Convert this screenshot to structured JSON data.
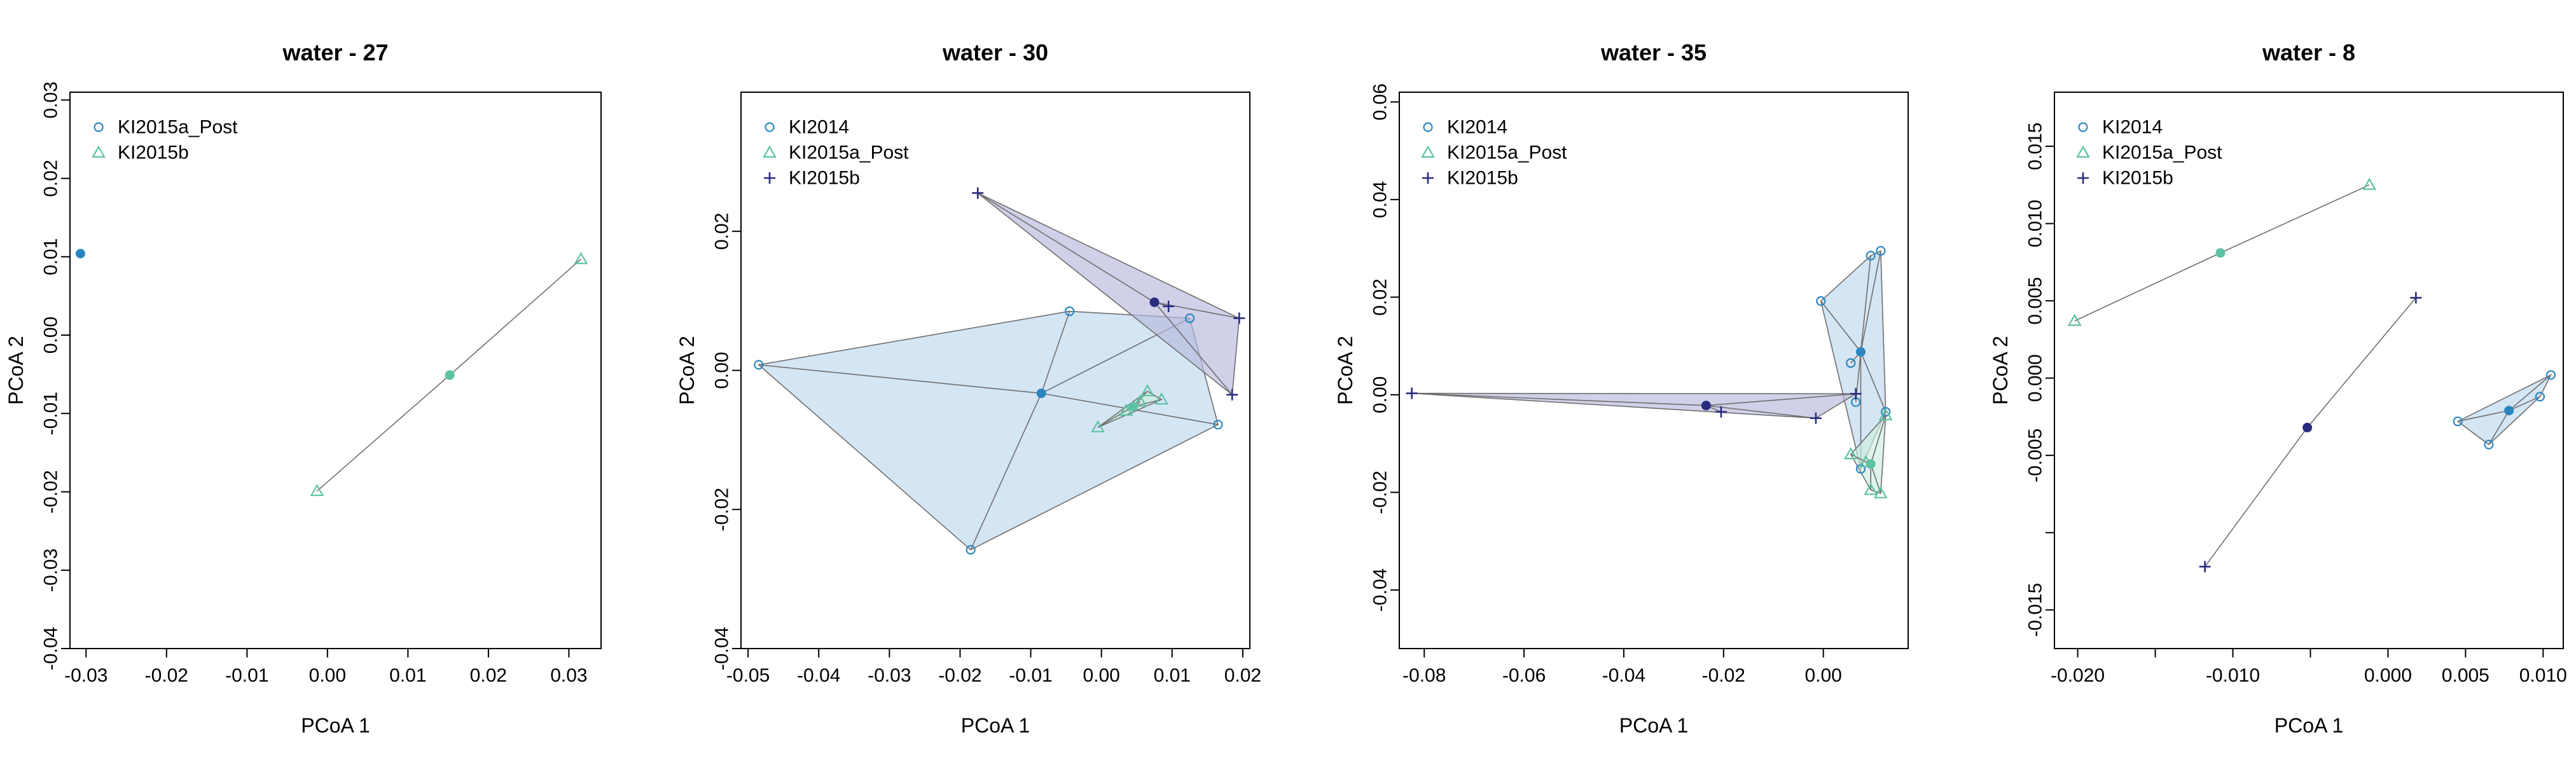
{
  "colors": {
    "KI2014": "#2B86C0",
    "KI2014_fill": "#BDD7EE",
    "KI2015a_Post": "#5CC2A4",
    "KI2015a_Post_fill": "#CDEEDF",
    "KI2015b": "#2A2C7E",
    "KI2015b_fill": "#B7B8DC",
    "hull_stroke": "#6F6F6F",
    "axis": "#000000"
  },
  "chart_data": [
    {
      "type": "scatter",
      "title": "water - 27",
      "xlabel": "PCoA 1",
      "ylabel": "PCoA 2",
      "xlim": [
        -0.032,
        0.034
      ],
      "ylim": [
        -0.04,
        0.031
      ],
      "xticks": [
        -0.03,
        -0.02,
        -0.01,
        0.0,
        0.01,
        0.02,
        0.03
      ],
      "xticklabels": [
        "-0.03",
        "-0.02",
        "-0.01",
        "0.00",
        "0.01",
        "0.02",
        "0.03"
      ],
      "yticks": [
        -0.04,
        -0.03,
        -0.02,
        -0.01,
        0.0,
        0.01,
        0.02,
        0.03
      ],
      "yticklabels": [
        "-0.04",
        "-0.03",
        "-0.02",
        "-0.01",
        "0.00",
        "0.01",
        "0.02",
        "0.03"
      ],
      "legend_position": "top-left",
      "series": [
        {
          "name": "KI2015a_Post",
          "marker": "circle",
          "color_key": "KI2014",
          "points": [],
          "centroid": [
            -0.0307,
            0.0104
          ]
        },
        {
          "name": "KI2015b",
          "marker": "triangle",
          "color_key": "KI2015a_Post",
          "points": [
            [
              -0.0013,
              -0.0199
            ],
            [
              0.0315,
              0.0097
            ]
          ],
          "centroid": [
            0.0152,
            -0.0051
          ]
        }
      ]
    },
    {
      "type": "scatter",
      "title": "water - 30",
      "xlabel": "PCoA 1",
      "ylabel": "PCoA 2",
      "xlim": [
        -0.051,
        0.021
      ],
      "ylim": [
        -0.04,
        0.04
      ],
      "xticks": [
        -0.05,
        -0.04,
        -0.03,
        -0.02,
        -0.01,
        0.0,
        0.01,
        0.02
      ],
      "xticklabels": [
        "-0.05",
        "-0.04",
        "-0.03",
        "-0.02",
        "-0.01",
        "0.00",
        "0.01",
        "0.02"
      ],
      "yticks": [
        -0.04,
        -0.02,
        0.0,
        0.02
      ],
      "yticklabels": [
        "-0.04",
        "-0.02",
        "0.00",
        "0.02"
      ],
      "legend_position": "top-left",
      "series": [
        {
          "name": "KI2014",
          "marker": "circle",
          "color_key": "KI2014",
          "points": [
            [
              -0.0485,
              0.0008
            ],
            [
              -0.0045,
              0.0085
            ],
            [
              0.0125,
              0.0075
            ],
            [
              0.0165,
              -0.0078
            ],
            [
              -0.0185,
              -0.0258
            ]
          ],
          "centroid": [
            -0.0085,
            -0.0033
          ]
        },
        {
          "name": "KI2015a_Post",
          "marker": "triangle",
          "color_key": "KI2015a_Post",
          "points": [
            [
              -0.0005,
              -0.0082
            ],
            [
              0.0065,
              -0.003
            ],
            [
              0.0085,
              -0.0042
            ],
            [
              0.0035,
              -0.0058
            ],
            [
              0.0055,
              -0.0045
            ]
          ],
          "centroid": [
            0.0045,
            -0.0052
          ]
        },
        {
          "name": "KI2015b",
          "marker": "plus",
          "color_key": "KI2015b",
          "points": [
            [
              -0.0175,
              0.0255
            ],
            [
              0.0195,
              0.0075
            ],
            [
              0.0185,
              -0.0035
            ],
            [
              0.0095,
              0.0092
            ]
          ],
          "centroid": [
            0.0075,
            0.0098
          ]
        }
      ]
    },
    {
      "type": "scatter",
      "title": "water - 35",
      "xlabel": "PCoA 1",
      "ylabel": "PCoA 2",
      "xlim": [
        -0.085,
        0.017
      ],
      "ylim": [
        -0.052,
        0.062
      ],
      "xticks": [
        -0.08,
        -0.06,
        -0.04,
        -0.02,
        0.0
      ],
      "xticklabels": [
        "-0.08",
        "-0.06",
        "-0.04",
        "-0.02",
        "0.00"
      ],
      "yticks": [
        -0.04,
        -0.02,
        0.0,
        0.02,
        0.04,
        0.06
      ],
      "yticklabels": [
        "-0.04",
        "-0.02",
        "0.00",
        "0.02",
        "0.04",
        "0.06"
      ],
      "legend_position": "top-left",
      "series": [
        {
          "name": "KI2014",
          "marker": "circle",
          "color_key": "KI2014",
          "points": [
            [
              -0.0005,
              0.0192
            ],
            [
              0.0115,
              0.0295
            ],
            [
              0.0095,
              0.0285
            ],
            [
              0.0125,
              -0.0035
            ],
            [
              0.0075,
              -0.0152
            ],
            [
              0.0065,
              -0.0015
            ],
            [
              0.0055,
              0.0065
            ]
          ],
          "centroid": [
            0.0075,
            0.0088
          ]
        },
        {
          "name": "KI2015a_Post",
          "marker": "triangle",
          "color_key": "KI2015a_Post",
          "points": [
            [
              0.0055,
              -0.0122
            ],
            [
              0.0095,
              -0.0195
            ],
            [
              0.0115,
              -0.0202
            ],
            [
              0.0125,
              -0.0042
            ],
            [
              0.0085,
              -0.0138
            ]
          ],
          "centroid": [
            0.0095,
            -0.0142
          ]
        },
        {
          "name": "KI2015b",
          "marker": "plus",
          "color_key": "KI2015b",
          "points": [
            [
              -0.0825,
              0.0003
            ],
            [
              -0.0205,
              -0.0035
            ],
            [
              -0.0015,
              -0.0048
            ],
            [
              0.0065,
              0.0002
            ]
          ],
          "centroid": [
            -0.0235,
            -0.0022
          ]
        }
      ]
    },
    {
      "type": "scatter",
      "title": "water - 8",
      "xlabel": "PCoA 1",
      "ylabel": "PCoA 2",
      "xlim": [
        -0.0215,
        0.0113
      ],
      "ylim": [
        -0.0175,
        0.0185
      ],
      "xticks": [
        -0.02,
        -0.015,
        -0.01,
        -0.005,
        0.0,
        0.005,
        0.01
      ],
      "xticklabels": [
        "-0.020",
        "",
        "-0.010",
        "",
        "0.000",
        "0.005",
        "0.010"
      ],
      "yticks": [
        -0.015,
        -0.01,
        -0.005,
        0.0,
        0.005,
        0.01,
        0.015
      ],
      "yticklabels": [
        "-0.015",
        "",
        "-0.005",
        "0.000",
        "0.005",
        "0.010",
        "0.015"
      ],
      "legend_position": "top-left",
      "series": [
        {
          "name": "KI2014",
          "marker": "circle",
          "color_key": "KI2014",
          "points": [
            [
              0.0045,
              -0.0028
            ],
            [
              0.0065,
              -0.0043
            ],
            [
              0.0105,
              0.0002
            ],
            [
              0.0098,
              -0.0012
            ]
          ],
          "centroid": [
            0.0078,
            -0.0021
          ]
        },
        {
          "name": "KI2015a_Post",
          "marker": "triangle",
          "color_key": "KI2015a_Post",
          "points": [
            [
              -0.0202,
              0.0037
            ],
            [
              -0.0012,
              0.0125
            ]
          ],
          "centroid": [
            -0.0108,
            0.0081
          ]
        },
        {
          "name": "KI2015b",
          "marker": "plus",
          "color_key": "KI2015b",
          "points": [
            [
              -0.0118,
              -0.0122
            ],
            [
              0.0018,
              0.0052
            ]
          ],
          "centroid": [
            -0.0052,
            -0.0032
          ]
        }
      ]
    }
  ]
}
